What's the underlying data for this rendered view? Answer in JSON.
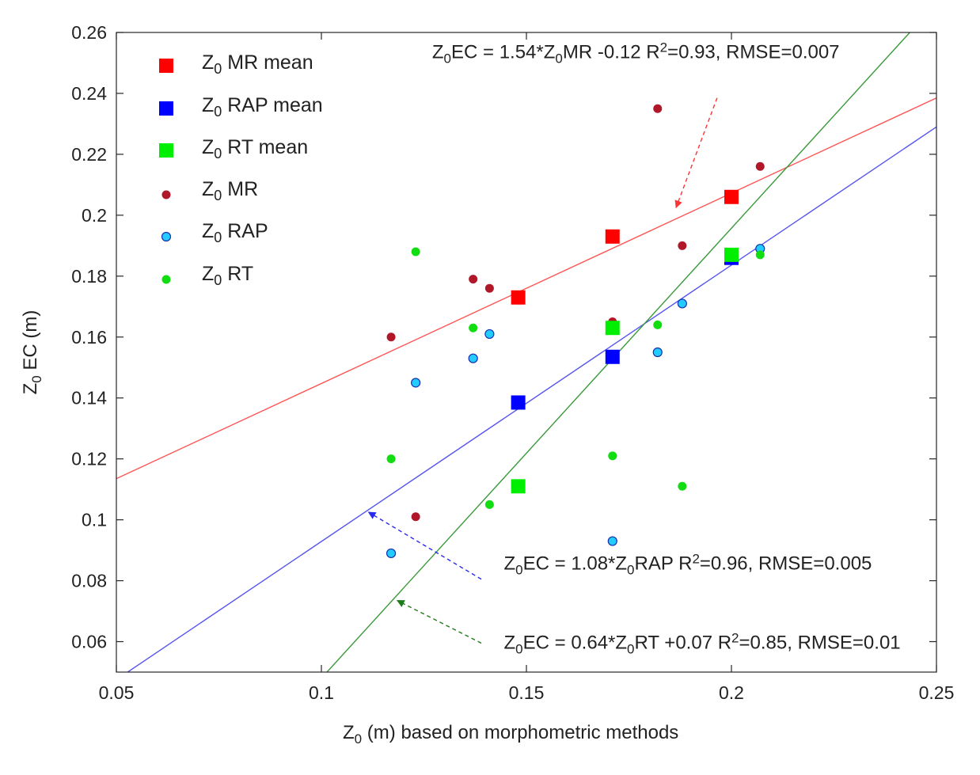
{
  "chart_data": {
    "type": "scatter",
    "title": "",
    "xlabel": {
      "base": "Z",
      "sub": "0",
      "rest": "  (m) based on morphometric methods"
    },
    "ylabel": {
      "base": "Z",
      "sub": "0",
      "rest": " EC (m)"
    },
    "xlim": [
      0.05,
      0.25
    ],
    "ylim": [
      0.05,
      0.26
    ],
    "xticks": [
      0.05,
      0.1,
      0.15,
      0.2,
      0.25
    ],
    "xtick_labels": [
      "0.05",
      "0.1",
      "0.15",
      "0.2",
      "0.25"
    ],
    "yticks": [
      0.06,
      0.08,
      0.1,
      0.12,
      0.14,
      0.16,
      0.18,
      0.2,
      0.22,
      0.24,
      0.26
    ],
    "ytick_labels": [
      "0.06",
      "0.08",
      "0.1",
      "0.12",
      "0.14",
      "0.16",
      "0.18",
      "0.2",
      "0.22",
      "0.24",
      "0.26"
    ],
    "grid": false,
    "legend_position": "top-left",
    "series": [
      {
        "name": "MR mean",
        "label_base": "Z",
        "label_sub": "0",
        "label_rest": " MR mean",
        "marker": "square",
        "color": "#ff0000",
        "x": [
          0.148,
          0.171,
          0.2
        ],
        "y": [
          0.173,
          0.193,
          0.206
        ]
      },
      {
        "name": "RAP mean",
        "label_base": "Z",
        "label_sub": "0",
        "label_rest": " RAP mean",
        "marker": "square",
        "color": "#0000ff",
        "x": [
          0.148,
          0.171,
          0.2
        ],
        "y": [
          0.1385,
          0.1535,
          0.186
        ]
      },
      {
        "name": "RT mean",
        "label_base": "Z",
        "label_sub": "0",
        "label_rest": " RT mean",
        "marker": "square",
        "color": "#00ee00",
        "x": [
          0.148,
          0.171,
          0.2
        ],
        "y": [
          0.111,
          0.163,
          0.187
        ]
      },
      {
        "name": "MR",
        "label_base": "Z",
        "label_sub": "0",
        "label_rest": " MR",
        "marker": "dot",
        "color": "#b0182a",
        "x": [
          0.117,
          0.123,
          0.137,
          0.141,
          0.171,
          0.182,
          0.188,
          0.207
        ],
        "y": [
          0.16,
          0.101,
          0.179,
          0.176,
          0.165,
          0.235,
          0.19,
          0.216
        ]
      },
      {
        "name": "RAP",
        "label_base": "Z",
        "label_sub": "0",
        "label_rest": " RAP",
        "marker": "circle",
        "color": "#22ccff",
        "x": [
          0.117,
          0.123,
          0.137,
          0.141,
          0.171,
          0.182,
          0.188,
          0.207
        ],
        "y": [
          0.089,
          0.145,
          0.153,
          0.161,
          0.093,
          0.155,
          0.171,
          0.189
        ]
      },
      {
        "name": "RT",
        "label_base": "Z",
        "label_sub": "0",
        "label_rest": " RT",
        "marker": "dot",
        "color": "#11dd11",
        "x": [
          0.117,
          0.123,
          0.137,
          0.141,
          0.171,
          0.182,
          0.188,
          0.207
        ],
        "y": [
          0.12,
          0.188,
          0.163,
          0.105,
          0.121,
          0.164,
          0.111,
          0.187
        ]
      }
    ],
    "fit_lines": [
      {
        "name": "MR fit",
        "color": "#ff5555",
        "x": [
          0.05,
          0.25
        ],
        "y": [
          0.1135,
          0.2385
        ]
      },
      {
        "name": "RAP fit",
        "color": "#5555ee",
        "x": [
          0.05,
          0.25
        ],
        "y": [
          0.0475,
          0.229
        ]
      },
      {
        "name": "RT fit",
        "color": "#3a9a3a",
        "x": [
          0.1,
          0.2435
        ],
        "y": [
          0.048,
          0.26
        ]
      }
    ],
    "annotations": [
      {
        "id": "mr",
        "parts": [
          [
            "Z"
          ],
          [
            "0",
            "sub"
          ],
          [
            "EC = 1.54*Z"
          ],
          [
            "0",
            "sub"
          ],
          [
            "MR -0.12  R"
          ],
          [
            "2",
            "sup"
          ],
          [
            "=0.93, RMSE=0.007"
          ]
        ],
        "text_at": [
          0.127,
          0.2515
        ],
        "arrow_from": [
          0.1965,
          0.2385
        ],
        "arrow_to": [
          0.1865,
          0.2025
        ],
        "color": "#ff3333"
      },
      {
        "id": "rap",
        "parts": [
          [
            "Z"
          ],
          [
            "0",
            "sub"
          ],
          [
            "EC = 1.08*Z"
          ],
          [
            "0",
            "sub"
          ],
          [
            "RAP   R"
          ],
          [
            "2",
            "sup"
          ],
          [
            "=0.96, RMSE=0.005"
          ]
        ],
        "text_at": [
          0.1445,
          0.0837
        ],
        "arrow_from": [
          0.139,
          0.0805
        ],
        "arrow_to": [
          0.1115,
          0.1025
        ],
        "color": "#2a2aee"
      },
      {
        "id": "rt",
        "parts": [
          [
            "Z"
          ],
          [
            "0",
            "sub"
          ],
          [
            "EC = 0.64*Z"
          ],
          [
            "0",
            "sub"
          ],
          [
            "RT +0.07  R"
          ],
          [
            "2",
            "sup"
          ],
          [
            "=0.85, RMSE=0.01"
          ]
        ],
        "text_at": [
          0.1445,
          0.0577
        ],
        "arrow_from": [
          0.139,
          0.0595
        ],
        "arrow_to": [
          0.1185,
          0.0735
        ],
        "color": "#1f7a1f"
      }
    ]
  }
}
